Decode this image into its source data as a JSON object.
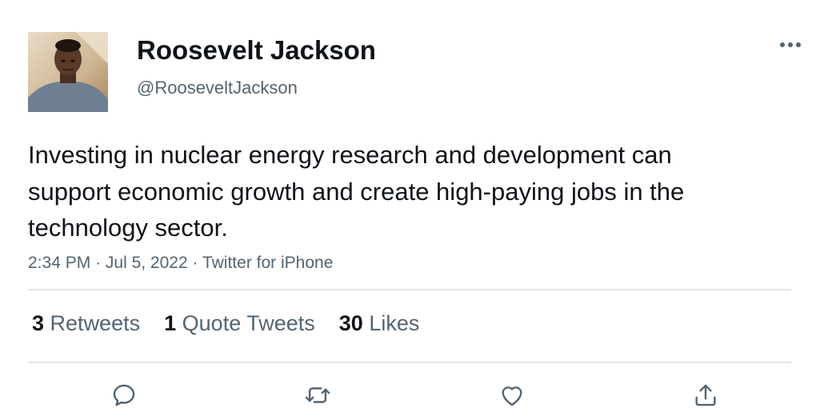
{
  "user": {
    "display_name": "Roosevelt Jackson",
    "handle": "@RooseveltJackson"
  },
  "tweet": {
    "text": "Investing in nuclear energy research and development can support economic growth and create high-paying jobs in the technology sector.",
    "time": "2:34 PM",
    "date": "Jul 5, 2022",
    "source": "Twitter for iPhone",
    "separator": "·"
  },
  "stats": {
    "retweets": {
      "count": "3",
      "label": "Retweets"
    },
    "quotes": {
      "count": "1",
      "label": "Quote Tweets"
    },
    "likes": {
      "count": "30",
      "label": "Likes"
    }
  },
  "icons": {
    "more": "more-horizontal-icon",
    "reply": "reply-bubble-icon",
    "retweet": "retweet-arrows-icon",
    "like": "heart-icon",
    "share": "share-upload-icon"
  },
  "colors": {
    "primary_text": "#0f1419",
    "secondary_text": "#536471",
    "divider": "#e1e5e8"
  }
}
